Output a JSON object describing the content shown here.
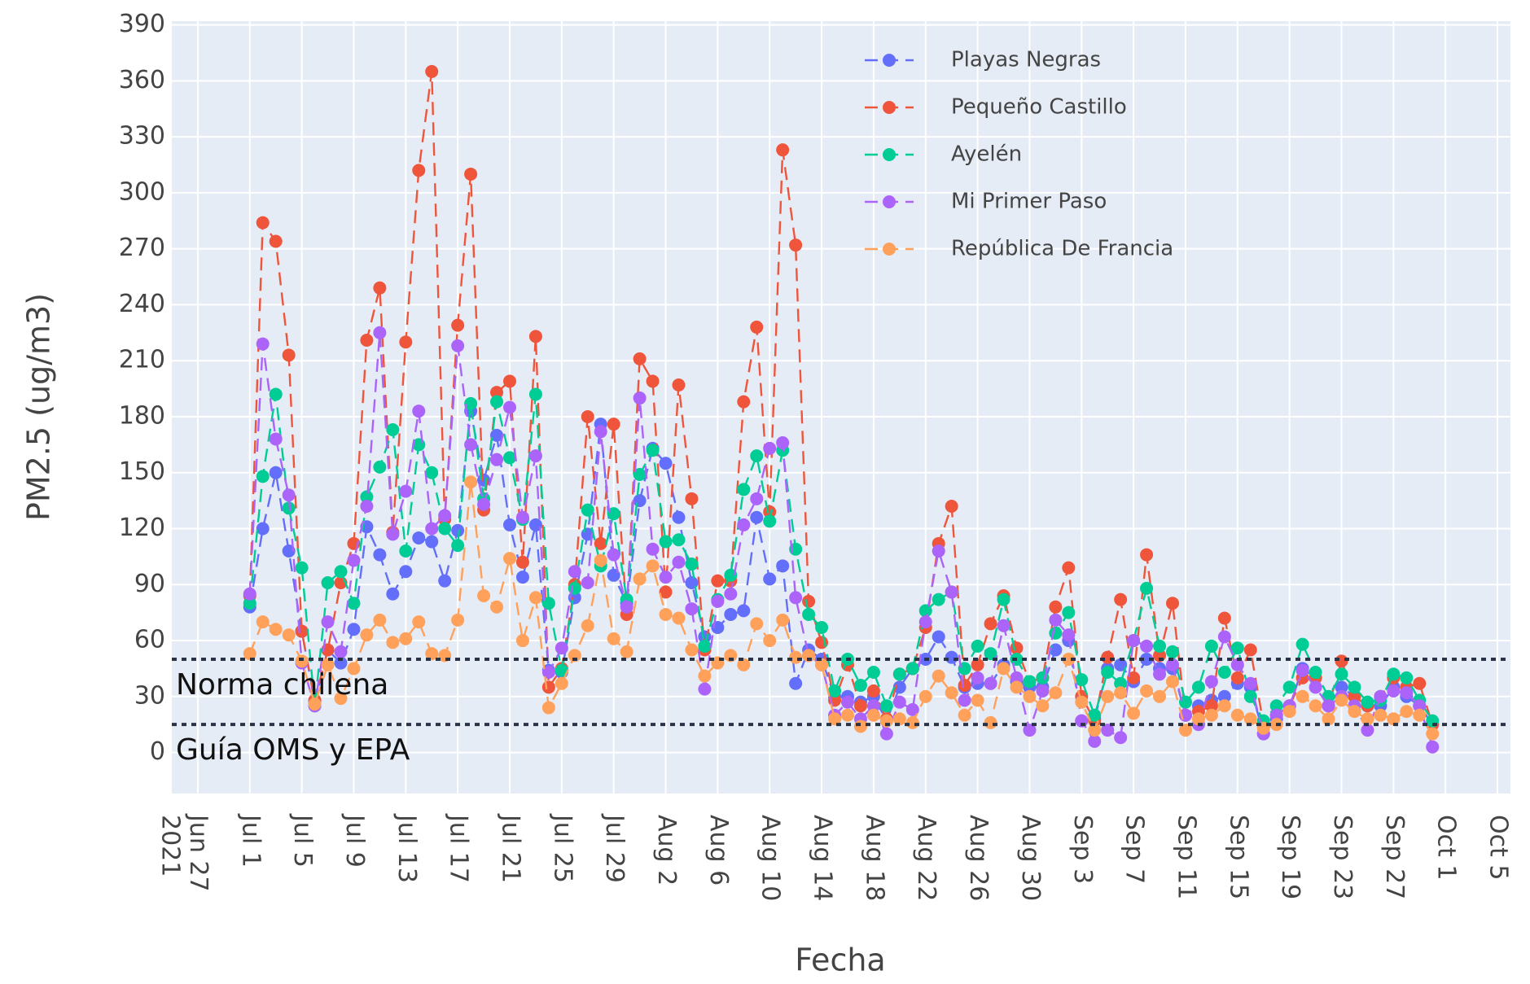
{
  "chart_data": {
    "type": "line",
    "xlabel": "Fecha",
    "ylabel": "PM2.5 (ug/m3)",
    "x": [
      "2021-07-01",
      "2021-07-02",
      "2021-07-03",
      "2021-07-04",
      "2021-07-05",
      "2021-07-06",
      "2021-07-07",
      "2021-07-08",
      "2021-07-09",
      "2021-07-10",
      "2021-07-11",
      "2021-07-12",
      "2021-07-13",
      "2021-07-14",
      "2021-07-15",
      "2021-07-16",
      "2021-07-17",
      "2021-07-18",
      "2021-07-19",
      "2021-07-20",
      "2021-07-21",
      "2021-07-22",
      "2021-07-23",
      "2021-07-24",
      "2021-07-25",
      "2021-07-26",
      "2021-07-27",
      "2021-07-28",
      "2021-07-29",
      "2021-07-30",
      "2021-07-31",
      "2021-08-01",
      "2021-08-02",
      "2021-08-03",
      "2021-08-04",
      "2021-08-05",
      "2021-08-06",
      "2021-08-07",
      "2021-08-08",
      "2021-08-09",
      "2021-08-10",
      "2021-08-11",
      "2021-08-12",
      "2021-08-13",
      "2021-08-14",
      "2021-08-15",
      "2021-08-16",
      "2021-08-17",
      "2021-08-18",
      "2021-08-19",
      "2021-08-20",
      "2021-08-21",
      "2021-08-22",
      "2021-08-23",
      "2021-08-24",
      "2021-08-25",
      "2021-08-26",
      "2021-08-27",
      "2021-08-28",
      "2021-08-29",
      "2021-08-30",
      "2021-08-31",
      "2021-09-01",
      "2021-09-02",
      "2021-09-03",
      "2021-09-04",
      "2021-09-05",
      "2021-09-06",
      "2021-09-07",
      "2021-09-08",
      "2021-09-09",
      "2021-09-10",
      "2021-09-11",
      "2021-09-12",
      "2021-09-13",
      "2021-09-14",
      "2021-09-15",
      "2021-09-16",
      "2021-09-17",
      "2021-09-18",
      "2021-09-19",
      "2021-09-20",
      "2021-09-21",
      "2021-09-22",
      "2021-09-23",
      "2021-09-24",
      "2021-09-25",
      "2021-09-26",
      "2021-09-27",
      "2021-09-28",
      "2021-09-29",
      "2021-09-30"
    ],
    "series": [
      {
        "name": "Playas Negras",
        "color": "#636efa",
        "values": [
          78,
          120,
          150,
          108,
          65,
          27,
          55,
          48,
          66,
          121,
          106,
          85,
          97,
          115,
          113,
          92,
          119,
          183,
          146,
          170,
          122,
          94,
          122,
          44,
          43,
          83,
          117,
          176,
          95,
          80,
          135,
          163,
          155,
          126,
          91,
          62,
          67,
          74,
          76,
          126,
          93,
          100,
          37,
          55,
          50,
          30,
          30,
          27,
          30,
          17,
          35,
          45,
          50,
          62,
          51,
          35,
          37,
          37,
          47,
          38,
          35,
          35,
          55,
          60,
          17,
          18,
          45,
          47,
          38,
          50,
          45,
          45,
          20,
          25,
          28,
          30,
          37,
          35,
          10,
          18,
          25,
          45,
          40,
          25,
          35,
          30,
          25,
          25,
          35,
          30,
          25,
          15
        ]
      },
      {
        "name": "Pequeño Castillo",
        "color": "#ef553b",
        "values": [
          84,
          284,
          274,
          213,
          65,
          28,
          55,
          91,
          112,
          221,
          249,
          118,
          220,
          312,
          365,
          125,
          229,
          310,
          130,
          193,
          199,
          102,
          223,
          35,
          45,
          90,
          180,
          112,
          176,
          74,
          211,
          199,
          86,
          197,
          136,
          55,
          92,
          92,
          188,
          228,
          129,
          323,
          272,
          81,
          59,
          28,
          47,
          25,
          33,
          18,
          42,
          45,
          67,
          112,
          132,
          36,
          47,
          69,
          84,
          56,
          38,
          40,
          78,
          99,
          30,
          17,
          51,
          82,
          40,
          106,
          52,
          80,
          20,
          22,
          25,
          72,
          40,
          55,
          15,
          20,
          25,
          40,
          40,
          25,
          49,
          30,
          25,
          30,
          40,
          35,
          37,
          15
        ]
      },
      {
        "name": "Ayelén",
        "color": "#00cc96",
        "values": [
          80,
          148,
          192,
          131,
          99,
          25,
          91,
          97,
          80,
          137,
          153,
          173,
          108,
          165,
          150,
          120,
          111,
          187,
          136,
          188,
          158,
          125,
          192,
          80,
          44,
          88,
          130,
          100,
          128,
          82,
          149,
          162,
          113,
          114,
          101,
          57,
          82,
          95,
          141,
          159,
          124,
          162,
          109,
          74,
          67,
          33,
          50,
          36,
          43,
          25,
          42,
          45,
          76,
          82,
          86,
          45,
          57,
          53,
          82,
          50,
          38,
          40,
          64,
          75,
          39,
          20,
          43,
          37,
          60,
          88,
          57,
          54,
          27,
          35,
          57,
          43,
          56,
          30,
          17,
          25,
          35,
          58,
          43,
          30,
          42,
          35,
          27,
          28,
          42,
          40,
          28,
          17
        ]
      },
      {
        "name": "Mi Primer Paso",
        "color": "#ab63fa",
        "values": [
          85,
          219,
          168,
          138,
          48,
          25,
          70,
          54,
          103,
          132,
          225,
          117,
          140,
          183,
          120,
          127,
          218,
          165,
          133,
          157,
          185,
          126,
          159,
          43,
          56,
          97,
          91,
          172,
          106,
          78,
          190,
          109,
          94,
          102,
          77,
          34,
          81,
          85,
          122,
          136,
          163,
          166,
          83,
          52,
          47,
          20,
          27,
          18,
          25,
          10,
          27,
          23,
          70,
          108,
          86,
          28,
          40,
          37,
          68,
          40,
          12,
          33,
          71,
          63,
          17,
          6,
          12,
          8,
          60,
          57,
          42,
          47,
          20,
          15,
          38,
          62,
          47,
          37,
          10,
          20,
          25,
          44,
          35,
          25,
          30,
          25,
          12,
          30,
          33,
          32,
          25,
          3
        ]
      },
      {
        "name": "República De Francia",
        "color": "#ffa15a",
        "values": [
          53,
          70,
          66,
          63,
          49,
          26,
          47,
          29,
          45,
          63,
          71,
          59,
          61,
          70,
          53,
          52,
          71,
          145,
          84,
          78,
          104,
          60,
          83,
          24,
          37,
          52,
          68,
          103,
          61,
          54,
          93,
          100,
          74,
          72,
          55,
          41,
          48,
          52,
          47,
          69,
          60,
          71,
          51,
          52,
          47,
          18,
          20,
          14,
          20,
          17,
          18,
          16,
          30,
          41,
          32,
          20,
          28,
          16,
          45,
          35,
          30,
          25,
          32,
          50,
          27,
          12,
          30,
          32,
          21,
          33,
          30,
          38,
          12,
          18,
          20,
          25,
          20,
          18,
          13,
          15,
          22,
          30,
          25,
          18,
          28,
          22,
          18,
          20,
          18,
          22,
          20,
          10
        ]
      }
    ],
    "xlim": [
      "2021-06-25",
      "2021-10-06"
    ],
    "xticks": [
      {
        "value": "2021-06-27",
        "label": "Jun 27\n2021"
      },
      {
        "value": "2021-07-01",
        "label": "Jul 1"
      },
      {
        "value": "2021-07-05",
        "label": "Jul 5"
      },
      {
        "value": "2021-07-09",
        "label": "Jul 9"
      },
      {
        "value": "2021-07-13",
        "label": "Jul 13"
      },
      {
        "value": "2021-07-17",
        "label": "Jul 17"
      },
      {
        "value": "2021-07-21",
        "label": "Jul 21"
      },
      {
        "value": "2021-07-25",
        "label": "Jul 25"
      },
      {
        "value": "2021-07-29",
        "label": "Jul 29"
      },
      {
        "value": "2021-08-02",
        "label": "Aug 2"
      },
      {
        "value": "2021-08-06",
        "label": "Aug 6"
      },
      {
        "value": "2021-08-10",
        "label": "Aug 10"
      },
      {
        "value": "2021-08-14",
        "label": "Aug 14"
      },
      {
        "value": "2021-08-18",
        "label": "Aug 18"
      },
      {
        "value": "2021-08-22",
        "label": "Aug 22"
      },
      {
        "value": "2021-08-26",
        "label": "Aug 26"
      },
      {
        "value": "2021-08-30",
        "label": "Aug 30"
      },
      {
        "value": "2021-09-03",
        "label": "Sep 3"
      },
      {
        "value": "2021-09-07",
        "label": "Sep 7"
      },
      {
        "value": "2021-09-11",
        "label": "Sep 11"
      },
      {
        "value": "2021-09-15",
        "label": "Sep 15"
      },
      {
        "value": "2021-09-19",
        "label": "Sep 19"
      },
      {
        "value": "2021-09-23",
        "label": "Sep 23"
      },
      {
        "value": "2021-09-27",
        "label": "Sep 27"
      },
      {
        "value": "2021-10-01",
        "label": "Oct 1"
      },
      {
        "value": "2021-10-05",
        "label": "Oct 5"
      }
    ],
    "ylim": [
      -22,
      392
    ],
    "yticks": [
      0,
      30,
      60,
      90,
      120,
      150,
      180,
      210,
      240,
      270,
      300,
      330,
      360,
      390
    ],
    "grid": true,
    "legend": "top-right",
    "hlines": [
      {
        "y": 50,
        "label": "Norma chilena"
      },
      {
        "y": 15,
        "label": "Guía OMS y EPA"
      }
    ]
  }
}
